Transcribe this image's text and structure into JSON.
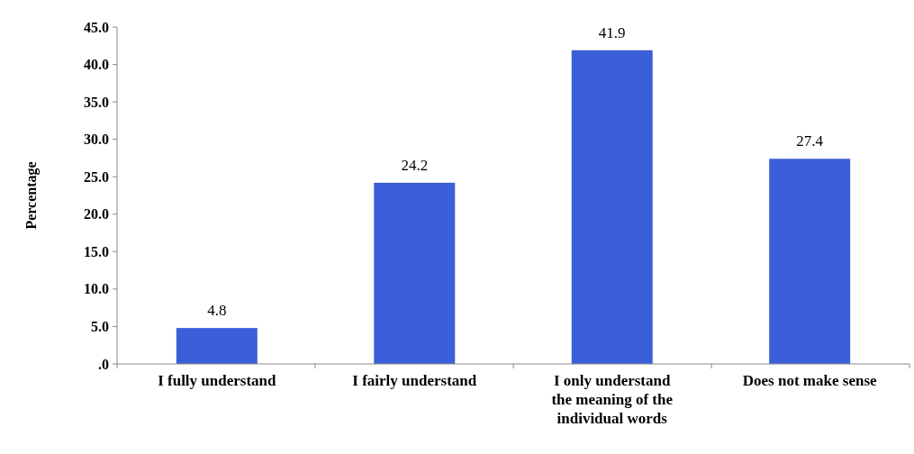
{
  "chart_data": {
    "type": "bar",
    "ylabel": "Percentage",
    "categories": [
      "I fully understand",
      "I fairly understand",
      "I only understand the meaning of the individual words",
      "Does not make sense"
    ],
    "values": [
      4.8,
      24.2,
      41.9,
      27.4
    ],
    "color": "#3b5fd9",
    "ylim": [
      0,
      45
    ],
    "yticks": [
      {
        "value": 0,
        "label": ".0"
      },
      {
        "value": 5,
        "label": "5.0"
      },
      {
        "value": 10,
        "label": "10.0"
      },
      {
        "value": 15,
        "label": "15.0"
      },
      {
        "value": 20,
        "label": "20.0"
      },
      {
        "value": 25,
        "label": "25.0"
      },
      {
        "value": 30,
        "label": "30.0"
      },
      {
        "value": 35,
        "label": "35.0"
      },
      {
        "value": 40,
        "label": "40.0"
      },
      {
        "value": 45,
        "label": "45.0"
      }
    ],
    "data_labels": true,
    "grid": false
  }
}
